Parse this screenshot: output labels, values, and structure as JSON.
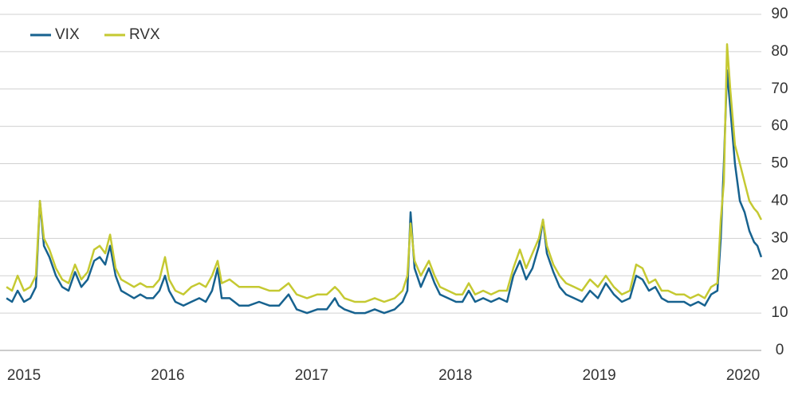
{
  "chart_data": {
    "type": "line",
    "legend": "upper left",
    "grid": true,
    "x": [
      2014.878,
      2014.917,
      2014.956,
      2015.0,
      2015.044,
      2015.083,
      2015.111,
      2015.139,
      2015.177,
      2015.222,
      2015.266,
      2015.31,
      2015.355,
      2015.399,
      2015.443,
      2015.488,
      2015.527,
      2015.565,
      2015.599,
      2015.637,
      2015.676,
      2015.721,
      2015.765,
      2015.809,
      2015.854,
      2015.898,
      2015.942,
      2015.981,
      2016.009,
      2016.053,
      2016.109,
      2016.164,
      2016.219,
      2016.264,
      2016.308,
      2016.347,
      2016.375,
      2016.43,
      2016.497,
      2016.563,
      2016.635,
      2016.707,
      2016.774,
      2016.84,
      2016.896,
      2016.968,
      2017.04,
      2017.106,
      2017.162,
      2017.189,
      2017.228,
      2017.3,
      2017.372,
      2017.439,
      2017.505,
      2017.578,
      2017.633,
      2017.666,
      2017.688,
      2017.716,
      2017.76,
      2017.816,
      2017.855,
      2017.893,
      2017.949,
      2018.004,
      2018.049,
      2018.093,
      2018.137,
      2018.193,
      2018.248,
      2018.304,
      2018.359,
      2018.403,
      2018.448,
      2018.492,
      2018.536,
      2018.581,
      2018.609,
      2018.636,
      2018.681,
      2018.725,
      2018.769,
      2018.825,
      2018.88,
      2018.936,
      2018.991,
      2019.046,
      2019.102,
      2019.157,
      2019.213,
      2019.257,
      2019.301,
      2019.346,
      2019.39,
      2019.434,
      2019.479,
      2019.534,
      2019.59,
      2019.634,
      2019.689,
      2019.734,
      2019.778,
      2019.822,
      2019.845,
      2019.867,
      2019.889,
      2019.911,
      2019.944,
      2019.978,
      2020.011,
      2020.044,
      2020.077,
      2020.1,
      2020.127
    ],
    "series": [
      {
        "name": "VIX",
        "color": "#17628f",
        "values": [
          14,
          13,
          16,
          13,
          14,
          17,
          40,
          28,
          25,
          20,
          17,
          16,
          21,
          17,
          19,
          24,
          25,
          23,
          28,
          20,
          16,
          15,
          14,
          15,
          14,
          14,
          16,
          20,
          16,
          13,
          12,
          13,
          14,
          13,
          16,
          22,
          14,
          14,
          12,
          12,
          13,
          12,
          12,
          15,
          11,
          10,
          11,
          11,
          14,
          12,
          11,
          10,
          10,
          11,
          10,
          11,
          13,
          16,
          37,
          22,
          17,
          22,
          18,
          15,
          14,
          13,
          13,
          16,
          13,
          14,
          13,
          14,
          13,
          20,
          24,
          19,
          22,
          28,
          35,
          26,
          21,
          17,
          15,
          14,
          13,
          16,
          14,
          18,
          15,
          13,
          14,
          20,
          19,
          16,
          17,
          14,
          13,
          13,
          13,
          12,
          13,
          12,
          15,
          16,
          30,
          50,
          75,
          65,
          50,
          40,
          37,
          32,
          29,
          28,
          25
        ]
      },
      {
        "name": "RVX",
        "color": "#c5c932",
        "values": [
          17,
          16,
          20,
          16,
          17,
          20,
          40,
          30,
          27,
          22,
          19,
          18,
          23,
          19,
          21,
          27,
          28,
          26,
          31,
          22,
          19,
          18,
          17,
          18,
          17,
          17,
          19,
          25,
          19,
          16,
          15,
          17,
          18,
          17,
          20,
          24,
          18,
          19,
          17,
          17,
          17,
          16,
          16,
          18,
          15,
          14,
          15,
          15,
          17,
          16,
          14,
          13,
          13,
          14,
          13,
          14,
          16,
          20,
          34,
          24,
          20,
          24,
          20,
          17,
          16,
          15,
          15,
          18,
          15,
          16,
          15,
          16,
          16,
          22,
          27,
          22,
          26,
          30,
          35,
          28,
          23,
          20,
          18,
          17,
          16,
          19,
          17,
          20,
          17,
          15,
          16,
          23,
          22,
          18,
          19,
          16,
          16,
          15,
          15,
          14,
          15,
          14,
          17,
          18,
          35,
          45,
          82,
          70,
          55,
          50,
          45,
          40,
          38,
          37,
          35
        ]
      }
    ],
    "xlim": [
      2014.85,
      2020.144
    ],
    "xticks": [
      2015,
      2016,
      2017,
      2018,
      2019,
      2020
    ],
    "ylim": [
      0,
      90
    ],
    "yticks": [
      0,
      10,
      20,
      30,
      40,
      50,
      60,
      70,
      80,
      90
    ]
  }
}
